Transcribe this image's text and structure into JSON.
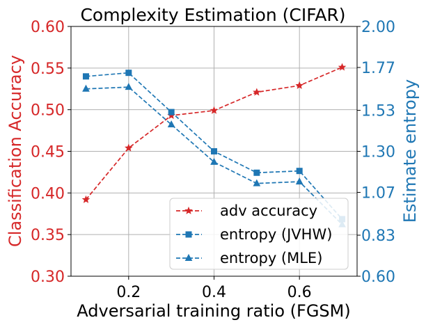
{
  "chart_data": {
    "type": "line",
    "title": "Complexity Estimation (CIFAR)",
    "xlabel": "Adversarial training ratio (FGSM)",
    "ylabel_left": "Classification Accuracy",
    "ylabel_right": "Estimate entropy",
    "xlim": [
      0.065,
      0.735
    ],
    "ylim_left": [
      0.3,
      0.6
    ],
    "ylim_right": [
      0.6,
      2.0
    ],
    "x_ticks": [
      0.2,
      0.4,
      0.6
    ],
    "x_tick_labels": [
      "0.2",
      "0.4",
      "0.6"
    ],
    "y_left_ticks": [
      0.3,
      0.35,
      0.4,
      0.45,
      0.5,
      0.55,
      0.6
    ],
    "y_left_tick_labels": [
      "0.30",
      "0.35",
      "0.40",
      "0.45",
      "0.50",
      "0.55",
      "0.60"
    ],
    "y_right_ticks": [
      0.6,
      0.83,
      1.07,
      1.3,
      1.53,
      1.77,
      2.0
    ],
    "y_right_tick_labels": [
      "0.60",
      "0.83",
      "1.07",
      "1.30",
      "1.53",
      "1.77",
      "2.00"
    ],
    "grid": true,
    "legend_position": "lower-right",
    "colors": {
      "left_axis": "#d62728",
      "right_axis": "#1f77b4"
    },
    "x": [
      0.1,
      0.2,
      0.3,
      0.4,
      0.5,
      0.6,
      0.7
    ],
    "series": [
      {
        "name": "adv accuracy",
        "axis": "left",
        "marker": "star",
        "color": "#d62728",
        "values": [
          0.392,
          0.454,
          0.493,
          0.499,
          0.521,
          0.529,
          0.551
        ]
      },
      {
        "name": "entropy (JVHW)",
        "axis": "right",
        "marker": "square",
        "color": "#1f77b4",
        "values": [
          1.72,
          1.74,
          1.52,
          1.3,
          1.18,
          1.19,
          0.92
        ]
      },
      {
        "name": "entropy (MLE)",
        "axis": "right",
        "marker": "triangle",
        "color": "#1f77b4",
        "values": [
          1.65,
          1.66,
          1.45,
          1.24,
          1.12,
          1.13,
          0.89
        ]
      }
    ]
  }
}
